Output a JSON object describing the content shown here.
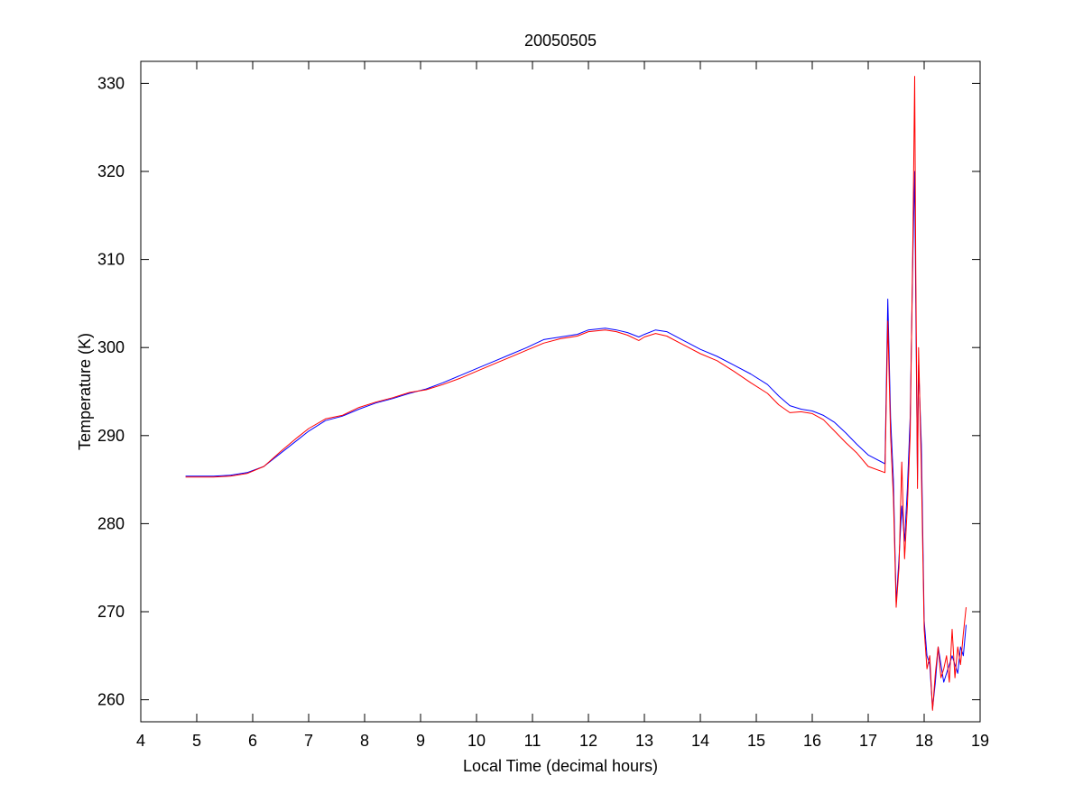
{
  "chart_data": {
    "type": "line",
    "title": "20050505",
    "xlabel": "Local Time (decimal hours)",
    "ylabel": "Temperature (K)",
    "xlim": [
      4,
      19
    ],
    "ylim": [
      257.5,
      332.5
    ],
    "xticks": [
      4,
      5,
      6,
      7,
      8,
      9,
      10,
      11,
      12,
      13,
      14,
      15,
      16,
      17,
      18,
      19
    ],
    "yticks": [
      260,
      270,
      280,
      290,
      300,
      310,
      320,
      330
    ],
    "grid": false,
    "legend": "none",
    "series": [
      {
        "color": "#0000ff",
        "x": [
          4.8,
          5.0,
          5.3,
          5.6,
          5.9,
          6.2,
          6.5,
          6.8,
          7.0,
          7.3,
          7.6,
          7.9,
          8.2,
          8.5,
          8.8,
          9.1,
          9.4,
          9.7,
          10.0,
          10.3,
          10.6,
          10.9,
          11.2,
          11.5,
          11.8,
          12.0,
          12.3,
          12.5,
          12.7,
          12.9,
          13.0,
          13.2,
          13.4,
          13.7,
          14.0,
          14.3,
          14.6,
          14.9,
          15.2,
          15.4,
          15.6,
          15.8,
          16.0,
          16.2,
          16.4,
          16.6,
          16.8,
          17.0,
          17.3,
          17.35,
          17.4,
          17.45,
          17.5,
          17.55,
          17.6,
          17.65,
          17.7,
          17.75,
          17.8,
          17.83,
          17.85,
          17.88,
          17.9,
          17.95,
          18.0,
          18.05,
          18.1,
          18.15,
          18.2,
          18.25,
          18.3,
          18.35,
          18.4,
          18.45,
          18.5,
          18.55,
          18.6,
          18.65,
          18.7,
          18.75
        ],
        "y": [
          285.4,
          285.4,
          285.4,
          285.5,
          285.8,
          286.5,
          288.0,
          289.5,
          290.5,
          291.7,
          292.2,
          293.0,
          293.7,
          294.2,
          294.8,
          295.3,
          296.0,
          296.8,
          297.6,
          298.4,
          299.2,
          300.0,
          300.9,
          301.2,
          301.5,
          302.0,
          302.2,
          302.0,
          301.7,
          301.2,
          301.5,
          302.0,
          301.8,
          300.8,
          299.8,
          299.0,
          298.0,
          297.0,
          295.8,
          294.5,
          293.4,
          293.0,
          292.8,
          292.3,
          291.5,
          290.3,
          289.0,
          287.8,
          286.8,
          305.5,
          292.0,
          285.0,
          271.0,
          276.0,
          282.0,
          278.0,
          284.0,
          292.0,
          311.0,
          320.0,
          305.0,
          285.0,
          298.0,
          289.0,
          269.0,
          265.0,
          264.0,
          259.0,
          262.0,
          266.0,
          264.0,
          262.0,
          263.0,
          264.0,
          265.0,
          264.0,
          263.0,
          266.0,
          265.0,
          268.5
        ]
      },
      {
        "color": "#ff0000",
        "x": [
          4.8,
          5.0,
          5.3,
          5.6,
          5.9,
          6.2,
          6.5,
          6.8,
          7.0,
          7.3,
          7.6,
          7.9,
          8.2,
          8.5,
          8.8,
          9.1,
          9.4,
          9.7,
          10.0,
          10.3,
          10.6,
          10.9,
          11.2,
          11.5,
          11.8,
          12.0,
          12.3,
          12.5,
          12.7,
          12.9,
          13.0,
          13.2,
          13.4,
          13.7,
          14.0,
          14.3,
          14.6,
          14.9,
          15.2,
          15.4,
          15.6,
          15.8,
          16.0,
          16.2,
          16.4,
          16.6,
          16.8,
          17.0,
          17.3,
          17.35,
          17.4,
          17.45,
          17.5,
          17.55,
          17.6,
          17.65,
          17.7,
          17.75,
          17.8,
          17.83,
          17.85,
          17.88,
          17.9,
          17.95,
          18.0,
          18.05,
          18.1,
          18.15,
          18.2,
          18.25,
          18.3,
          18.35,
          18.4,
          18.45,
          18.5,
          18.55,
          18.6,
          18.65,
          18.7,
          18.75
        ],
        "y": [
          285.3,
          285.3,
          285.3,
          285.4,
          285.7,
          286.5,
          288.2,
          289.8,
          290.8,
          291.9,
          292.3,
          293.2,
          293.8,
          294.3,
          294.9,
          295.2,
          295.8,
          296.5,
          297.3,
          298.1,
          298.9,
          299.7,
          300.5,
          301.0,
          301.3,
          301.8,
          302.0,
          301.8,
          301.4,
          300.8,
          301.2,
          301.6,
          301.3,
          300.3,
          299.3,
          298.5,
          297.3,
          296.0,
          294.8,
          293.5,
          292.6,
          292.7,
          292.5,
          291.8,
          290.5,
          289.2,
          288.0,
          286.5,
          285.8,
          303.0,
          290.0,
          283.0,
          270.5,
          275.0,
          287.0,
          276.0,
          282.0,
          290.0,
          313.0,
          330.8,
          309.0,
          284.0,
          300.0,
          286.0,
          268.0,
          263.5,
          265.0,
          258.8,
          263.0,
          266.0,
          262.5,
          263.5,
          265.0,
          262.0,
          268.0,
          262.5,
          266.0,
          264.0,
          267.5,
          270.5
        ]
      }
    ]
  }
}
